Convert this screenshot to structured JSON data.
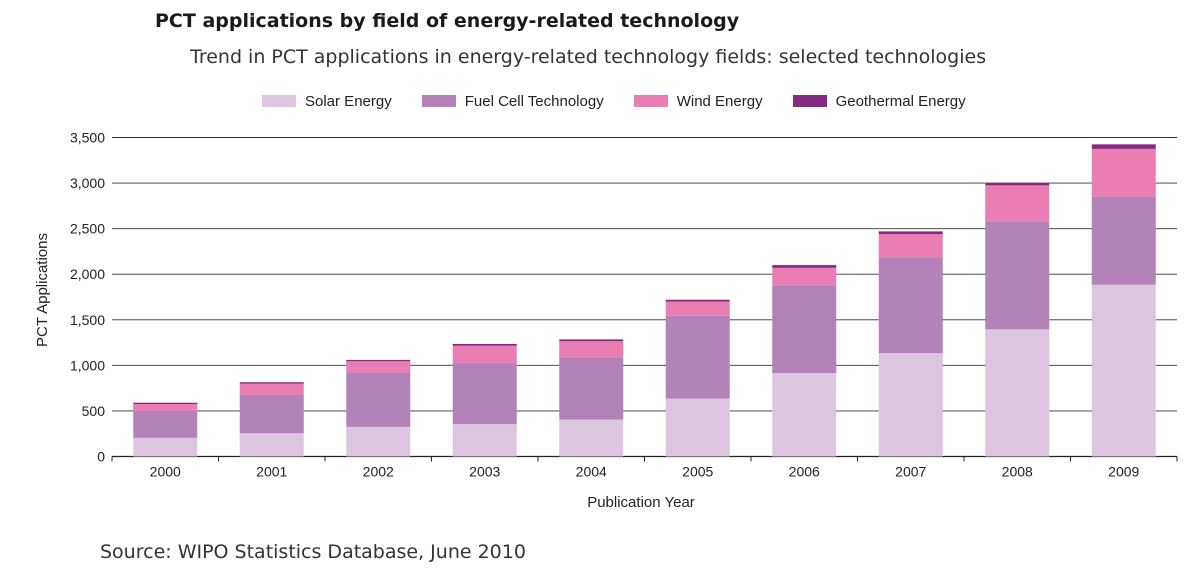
{
  "chart_data": {
    "type": "bar",
    "stacked": true,
    "title": "PCT applications by field of energy-related technology",
    "subtitle": "Trend in PCT applications in energy-related technology fields: selected technologies",
    "xlabel": "Publication Year",
    "ylabel": "PCT Applications",
    "ylim": [
      0,
      3500
    ],
    "yticks": [
      0,
      500,
      1000,
      1500,
      2000,
      2500,
      3000,
      3500
    ],
    "ytick_labels": [
      "0",
      "500",
      "1,000",
      "1,500",
      "2,000",
      "2,500",
      "3,000",
      "3,500"
    ],
    "categories": [
      "2000",
      "2001",
      "2002",
      "2003",
      "2004",
      "2005",
      "2006",
      "2007",
      "2008",
      "2009"
    ],
    "series": [
      {
        "name": "Solar Energy",
        "color": "#dcc5df",
        "values": [
          205,
          255,
          325,
          355,
          405,
          635,
          915,
          1135,
          1395,
          1885
        ]
      },
      {
        "name": "Fuel Cell Technology",
        "color": "#b382b8",
        "values": [
          290,
          420,
          600,
          670,
          685,
          910,
          965,
          1050,
          1185,
          970
        ]
      },
      {
        "name": "Wind Energy",
        "color": "#ea7db2",
        "values": [
          80,
          125,
          120,
          190,
          175,
          155,
          190,
          255,
          395,
          520
        ]
      },
      {
        "name": "Geothermal Energy",
        "color": "#862b82",
        "values": [
          15,
          15,
          15,
          20,
          20,
          20,
          30,
          30,
          25,
          50
        ]
      }
    ],
    "grid": true,
    "legend_position": "top"
  },
  "source": "Source: WIPO Statistics Database, June 2010"
}
